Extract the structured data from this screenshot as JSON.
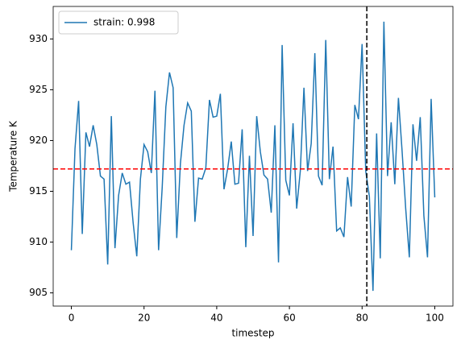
{
  "chart_data": {
    "type": "line",
    "xlabel": "timestep",
    "ylabel": "Temperature K",
    "x": [
      0,
      1,
      2,
      3,
      4,
      5,
      6,
      7,
      8,
      9,
      10,
      11,
      12,
      13,
      14,
      15,
      16,
      17,
      18,
      19,
      20,
      21,
      22,
      23,
      24,
      25,
      26,
      27,
      28,
      29,
      30,
      31,
      32,
      33,
      34,
      35,
      36,
      37,
      38,
      39,
      40,
      41,
      42,
      43,
      44,
      45,
      46,
      47,
      48,
      49,
      50,
      51,
      52,
      53,
      54,
      55,
      56,
      57,
      58,
      59,
      60,
      61,
      62,
      63,
      64,
      65,
      66,
      67,
      68,
      69,
      70,
      71,
      72,
      73,
      74,
      75,
      76,
      77,
      78,
      79,
      80,
      81,
      82,
      83,
      84,
      85,
      86,
      87,
      88,
      89,
      90,
      91,
      92,
      93,
      94,
      95,
      96,
      97,
      98,
      99,
      100
    ],
    "series": [
      {
        "name": "strain: 0.998",
        "color": "#1f77b4",
        "values": [
          909.2,
          919.2,
          923.9,
          910.8,
          920.8,
          919.4,
          921.5,
          919.6,
          916.5,
          916.2,
          907.8,
          922.4,
          909.4,
          914.6,
          916.8,
          915.7,
          915.9,
          911.9,
          908.6,
          916.2,
          919.6,
          918.9,
          916.8,
          924.9,
          909.2,
          915.4,
          923.3,
          926.7,
          925.2,
          910.4,
          917.7,
          921.5,
          923.7,
          922.9,
          912.0,
          916.3,
          916.2,
          917.3,
          924.0,
          922.3,
          922.4,
          924.6,
          915.2,
          917.2,
          919.9,
          915.7,
          915.8,
          921.1,
          909.5,
          918.5,
          910.6,
          922.4,
          918.9,
          916.6,
          916.2,
          912.9,
          921.5,
          908.0,
          929.4,
          916.1,
          914.6,
          921.7,
          913.3,
          917.0,
          925.2,
          917.0,
          919.7,
          928.6,
          916.5,
          915.6,
          929.9,
          916.2,
          919.4,
          911.1,
          911.4,
          910.5,
          916.4,
          913.5,
          923.5,
          922.1,
          929.5,
          917.0,
          914.5,
          905.2,
          920.7,
          908.4,
          931.7,
          916.5,
          921.8,
          915.7,
          924.2,
          919.0,
          913.3,
          908.5,
          921.6,
          918.0,
          922.3,
          912.6,
          908.5,
          924.1,
          914.4
        ]
      }
    ],
    "hline": 917.2,
    "hline_color": "#ff0000",
    "vline": 81.3,
    "vline_color": "#000000",
    "xlim": [
      -5,
      105
    ],
    "ylim": [
      903.7,
      933.2
    ],
    "xticks": [
      0,
      20,
      40,
      60,
      80,
      100
    ],
    "yticks": [
      905,
      910,
      915,
      920,
      925,
      930
    ],
    "legend": "upper left"
  }
}
